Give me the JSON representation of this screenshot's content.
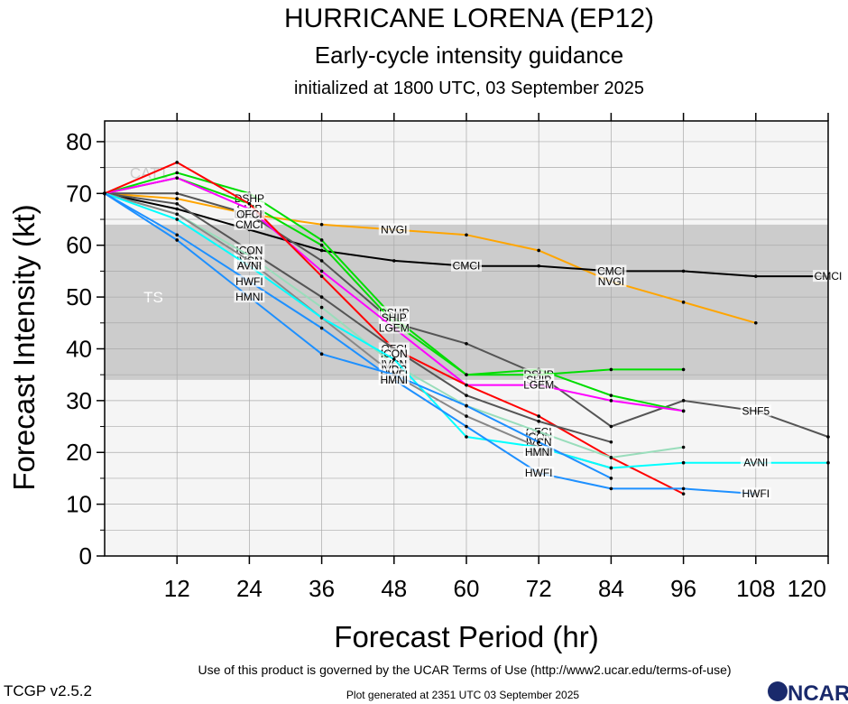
{
  "header": {
    "title": "HURRICANE LORENA (EP12)",
    "subtitle": "Early-cycle intensity guidance",
    "init": "initialized at 1800 UTC, 03 September 2025"
  },
  "footer": {
    "terms": "Use of this product is governed by the UCAR Terms of Use (http://www2.ucar.edu/terms-of-use)",
    "version": "TCGP v2.5.2",
    "generated": "Plot generated at 2351 UTC   03 September 2025",
    "logo": "NCAR"
  },
  "chart_data": {
    "type": "line",
    "xlabel": "Forecast Period (hr)",
    "ylabel": "Forecast Intensity (kt)",
    "xlim": [
      0,
      120
    ],
    "ylim": [
      0,
      84
    ],
    "x_ticks": [
      12,
      24,
      36,
      48,
      60,
      72,
      84,
      96,
      108,
      120
    ],
    "y_ticks": [
      0,
      10,
      20,
      30,
      40,
      50,
      60,
      70,
      80
    ],
    "bands": [
      {
        "label": "TS",
        "from": 34,
        "to": 64,
        "color": "#cccccc"
      },
      {
        "label": "CAT1",
        "from": 64,
        "to": 84,
        "color": "#f5f5f5"
      }
    ],
    "series": [
      {
        "name": "NVGI",
        "color": "#ffa500",
        "points": [
          [
            0,
            70
          ],
          [
            12,
            69
          ],
          [
            24,
            66
          ],
          [
            36,
            64
          ],
          [
            48,
            63
          ],
          [
            60,
            62
          ],
          [
            72,
            59
          ],
          [
            84,
            53
          ],
          [
            96,
            49
          ],
          [
            108,
            45
          ]
        ],
        "labels": [
          [
            48,
            63
          ],
          [
            84,
            53
          ]
        ]
      },
      {
        "name": "CMCI",
        "color": "#000000",
        "points": [
          [
            0,
            70
          ],
          [
            12,
            67
          ],
          [
            24,
            63
          ],
          [
            36,
            59
          ],
          [
            48,
            57
          ],
          [
            60,
            56
          ],
          [
            72,
            56
          ],
          [
            84,
            55
          ],
          [
            96,
            55
          ],
          [
            108,
            54
          ],
          [
            120,
            54
          ]
        ],
        "labels": [
          [
            24,
            64
          ],
          [
            60,
            56
          ],
          [
            84,
            55
          ],
          [
            120,
            54
          ]
        ]
      },
      {
        "name": "SHF5",
        "color": "#555555",
        "points": [
          [
            0,
            70
          ],
          [
            12,
            70
          ],
          [
            24,
            66
          ],
          [
            36,
            57
          ],
          [
            48,
            45
          ],
          [
            60,
            41
          ],
          [
            72,
            35
          ],
          [
            84,
            25
          ],
          [
            96,
            30
          ],
          [
            108,
            28
          ],
          [
            120,
            23
          ]
        ],
        "labels": [
          [
            48,
            46
          ],
          [
            108,
            28
          ]
        ]
      },
      {
        "name": "DSHP",
        "color": "#00dd00",
        "points": [
          [
            0,
            70
          ],
          [
            12,
            74
          ],
          [
            24,
            70
          ],
          [
            36,
            61
          ],
          [
            48,
            46
          ],
          [
            60,
            35
          ],
          [
            72,
            36
          ],
          [
            84,
            31
          ],
          [
            96,
            28
          ]
        ],
        "labels": [
          [
            24,
            69
          ],
          [
            48,
            47
          ],
          [
            72,
            35
          ]
        ]
      },
      {
        "name": "SHIP",
        "color": "#00dd00",
        "points": [
          [
            0,
            70
          ],
          [
            12,
            73
          ],
          [
            24,
            68
          ],
          [
            36,
            60
          ],
          [
            48,
            45
          ],
          [
            60,
            35
          ],
          [
            72,
            35
          ],
          [
            84,
            36
          ],
          [
            96,
            36
          ]
        ],
        "labels": [
          [
            24,
            67
          ],
          [
            48,
            46
          ],
          [
            72,
            34
          ]
        ]
      },
      {
        "name": "LGEM",
        "color": "#ff00ff",
        "points": [
          [
            0,
            70
          ],
          [
            12,
            73
          ],
          [
            24,
            67
          ],
          [
            36,
            55
          ],
          [
            48,
            44
          ],
          [
            60,
            33
          ],
          [
            72,
            33
          ],
          [
            84,
            30
          ],
          [
            96,
            28
          ]
        ],
        "labels": [
          [
            24,
            66
          ],
          [
            48,
            44
          ],
          [
            72,
            33
          ]
        ]
      },
      {
        "name": "OFCI",
        "color": "#ff0000",
        "points": [
          [
            0,
            70
          ],
          [
            12,
            76
          ],
          [
            24,
            68
          ],
          [
            36,
            54
          ],
          [
            48,
            40
          ],
          [
            60,
            33
          ],
          [
            72,
            27
          ],
          [
            84,
            19
          ],
          [
            96,
            12
          ]
        ],
        "labels": [
          [
            24,
            66
          ],
          [
            48,
            40
          ],
          [
            72,
            24
          ]
        ]
      },
      {
        "name": "ICON",
        "color": "#555555",
        "points": [
          [
            0,
            70
          ],
          [
            12,
            68
          ],
          [
            24,
            59
          ],
          [
            36,
            50
          ],
          [
            48,
            40
          ],
          [
            60,
            31
          ],
          [
            72,
            26
          ],
          [
            84,
            22
          ]
        ],
        "labels": [
          [
            24,
            59
          ],
          [
            48,
            39
          ],
          [
            72,
            23
          ]
        ]
      },
      {
        "name": "IVCN",
        "color": "#99ddbb",
        "points": [
          [
            0,
            70
          ],
          [
            12,
            66
          ],
          [
            24,
            58
          ],
          [
            36,
            48
          ],
          [
            48,
            37
          ],
          [
            60,
            29
          ],
          [
            72,
            24
          ],
          [
            84,
            19
          ],
          [
            96,
            21
          ]
        ],
        "labels": [
          [
            24,
            57
          ],
          [
            48,
            37
          ],
          [
            72,
            22
          ]
        ]
      },
      {
        "name": "IVDR",
        "color": "#888888",
        "points": [
          [
            0,
            70
          ],
          [
            12,
            66
          ],
          [
            24,
            57
          ],
          [
            36,
            46
          ],
          [
            48,
            35
          ],
          [
            60,
            27
          ],
          [
            72,
            21
          ],
          [
            84,
            17
          ]
        ],
        "labels": [
          [
            24,
            56
          ],
          [
            48,
            36
          ]
        ]
      },
      {
        "name": "AVNI",
        "color": "#00ffff",
        "points": [
          [
            0,
            70
          ],
          [
            12,
            65
          ],
          [
            24,
            56
          ],
          [
            36,
            46
          ],
          [
            48,
            38
          ],
          [
            60,
            23
          ],
          [
            72,
            21
          ],
          [
            84,
            17
          ],
          [
            96,
            18
          ],
          [
            108,
            18
          ],
          [
            120,
            18
          ]
        ],
        "labels": [
          [
            24,
            56
          ],
          [
            48,
            34
          ],
          [
            72,
            20
          ],
          [
            108,
            18
          ]
        ]
      },
      {
        "name": "HWFI",
        "color": "#1e90ff",
        "points": [
          [
            0,
            70
          ],
          [
            12,
            62
          ],
          [
            24,
            53
          ],
          [
            36,
            44
          ],
          [
            48,
            34
          ],
          [
            60,
            25
          ],
          [
            72,
            16
          ],
          [
            84,
            13
          ],
          [
            96,
            13
          ],
          [
            108,
            12
          ]
        ],
        "labels": [
          [
            24,
            53
          ],
          [
            48,
            35
          ],
          [
            72,
            16
          ],
          [
            108,
            12
          ]
        ]
      },
      {
        "name": "HMNI",
        "color": "#1e90ff",
        "points": [
          [
            0,
            70
          ],
          [
            12,
            61
          ],
          [
            24,
            50
          ],
          [
            36,
            39
          ],
          [
            48,
            35
          ],
          [
            60,
            29
          ],
          [
            72,
            22
          ],
          [
            84,
            15
          ]
        ],
        "labels": [
          [
            24,
            50
          ],
          [
            48,
            34
          ],
          [
            72,
            20
          ]
        ]
      }
    ]
  }
}
